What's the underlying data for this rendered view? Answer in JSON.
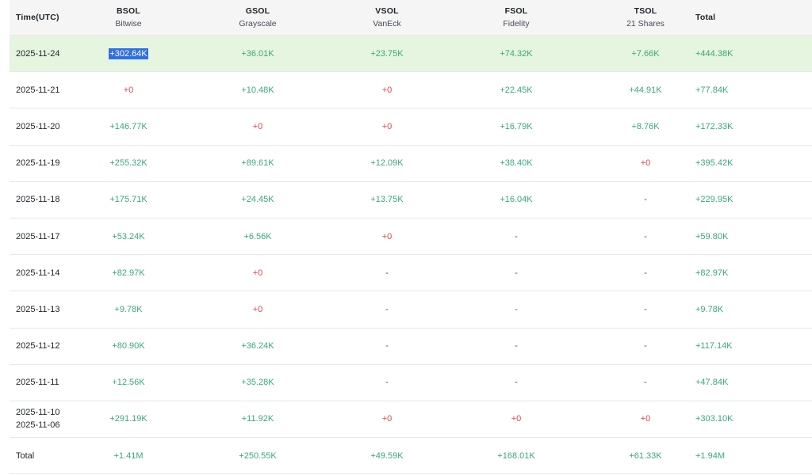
{
  "columns": [
    {
      "name": "Time(UTC)",
      "sub": ""
    },
    {
      "name": "BSOL",
      "sub": "Bitwise"
    },
    {
      "name": "GSOL",
      "sub": "Grayscale"
    },
    {
      "name": "VSOL",
      "sub": "VanEck"
    },
    {
      "name": "FSOL",
      "sub": "Fidelity"
    },
    {
      "name": "TSOL",
      "sub": "21 Shares"
    },
    {
      "name": "Total",
      "sub": ""
    }
  ],
  "rows": [
    {
      "dates": [
        "2025-11-24"
      ],
      "values": [
        "+302.64K",
        "+36.01K",
        "+23.75K",
        "+74.32K",
        "+7.66K",
        "+444.38K"
      ]
    },
    {
      "dates": [
        "2025-11-21"
      ],
      "values": [
        "+0",
        "+10.48K",
        "+0",
        "+22.45K",
        "+44.91K",
        "+77.84K"
      ]
    },
    {
      "dates": [
        "2025-11-20"
      ],
      "values": [
        "+146.77K",
        "+0",
        "+0",
        "+16.79K",
        "+8.76K",
        "+172.33K"
      ]
    },
    {
      "dates": [
        "2025-11-19"
      ],
      "values": [
        "+255.32K",
        "+89.61K",
        "+12.09K",
        "+38.40K",
        "+0",
        "+395.42K"
      ]
    },
    {
      "dates": [
        "2025-11-18"
      ],
      "values": [
        "+175.71K",
        "+24.45K",
        "+13.75K",
        "+16.04K",
        "-",
        "+229.95K"
      ]
    },
    {
      "dates": [
        "2025-11-17"
      ],
      "values": [
        "+53.24K",
        "+6.56K",
        "+0",
        "-",
        "-",
        "+59.80K"
      ]
    },
    {
      "dates": [
        "2025-11-14"
      ],
      "values": [
        "+82.97K",
        "+0",
        "-",
        "-",
        "-",
        "+82.97K"
      ]
    },
    {
      "dates": [
        "2025-11-13"
      ],
      "values": [
        "+9.78K",
        "+0",
        "-",
        "-",
        "-",
        "+9.78K"
      ]
    },
    {
      "dates": [
        "2025-11-12"
      ],
      "values": [
        "+80.90K",
        "+36.24K",
        "-",
        "-",
        "-",
        "+117.14K"
      ]
    },
    {
      "dates": [
        "2025-11-11"
      ],
      "values": [
        "+12.56K",
        "+35.28K",
        "-",
        "-",
        "-",
        "+47.84K"
      ]
    },
    {
      "dates": [
        "2025-11-10",
        "2025-11-06"
      ],
      "values": [
        "+291.19K",
        "+11.92K",
        "+0",
        "+0",
        "+0",
        "+303.10K"
      ]
    }
  ],
  "total": {
    "label": "Total",
    "values": [
      "+1.41M",
      "+250.55K",
      "+49.59K",
      "+168.01K",
      "+61.33K",
      "+1.94M"
    ]
  },
  "highlight_row": 0,
  "selected_cell": {
    "row": 0,
    "col": 0
  },
  "colors": {
    "positive": "#3aa87a",
    "zero": "#e0464f",
    "highlight": "#e5f5df",
    "selection": "#2f6fe4"
  }
}
